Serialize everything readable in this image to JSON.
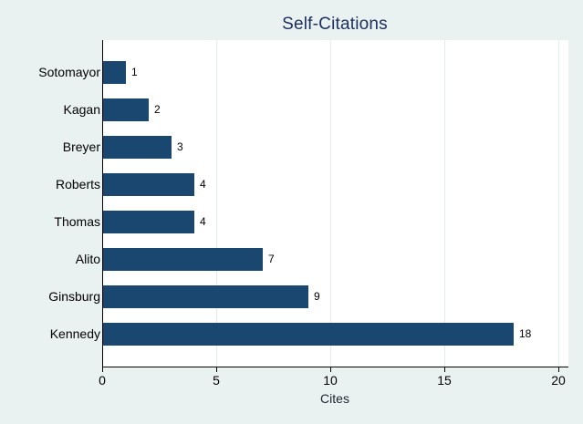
{
  "chart_data": {
    "type": "bar",
    "orientation": "horizontal",
    "title": "Self-Citations",
    "xlabel": "Cites",
    "categories": [
      "Sotomayor",
      "Kagan",
      "Breyer",
      "Roberts",
      "Thomas",
      "Alito",
      "Ginsburg",
      "Kennedy"
    ],
    "values": [
      1,
      2,
      3,
      4,
      4,
      7,
      9,
      18
    ],
    "data_labels": [
      "1",
      "2",
      "3",
      "4",
      "4",
      "7",
      "9",
      "18"
    ],
    "xticks": [
      0,
      5,
      10,
      15,
      20
    ],
    "xtick_labels": [
      "0",
      "5",
      "10",
      "15",
      "20"
    ],
    "xlim": [
      0,
      20.4
    ],
    "grid": "vertical-at-ticks",
    "legend": "none",
    "colors": {
      "bar": "#1a476f",
      "page_background": "#eaf1f1",
      "plot_background": "#ffffff",
      "gridline": "#e3ebee",
      "axis_line": "#000000",
      "title_text": "#1b2f5e",
      "axis_title_text": "#1c2430",
      "tick_text": "#000000",
      "value_label_text": "#000000"
    }
  }
}
